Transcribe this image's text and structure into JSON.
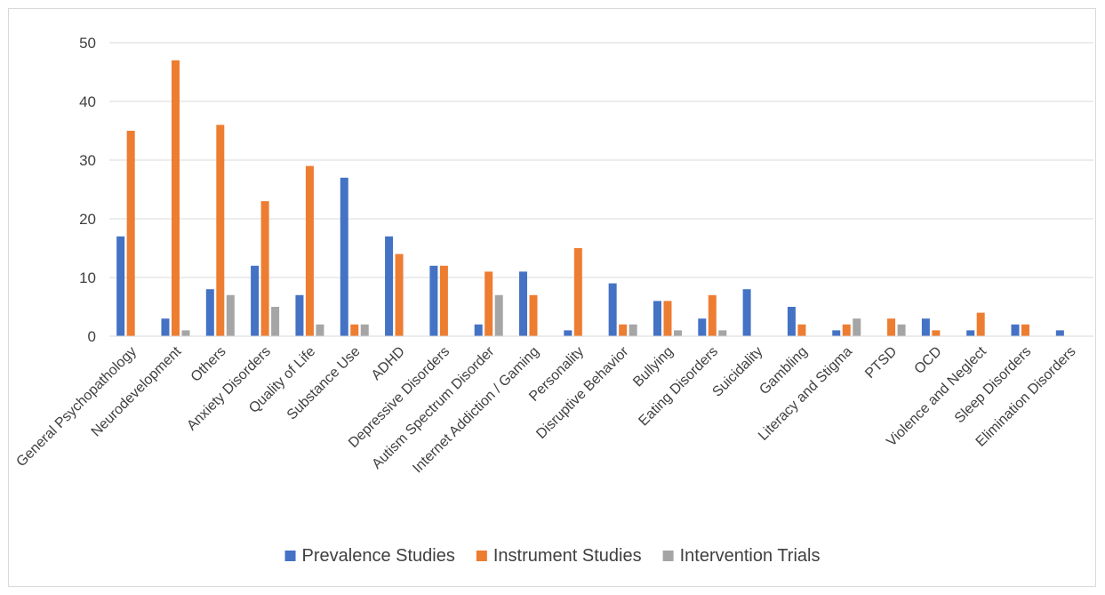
{
  "chart_data": {
    "type": "bar",
    "title": "",
    "xlabel": "",
    "ylabel": "",
    "ylim": [
      0,
      50
    ],
    "yticks": [
      0,
      10,
      20,
      30,
      40,
      50
    ],
    "grid": true,
    "legend_position": "bottom",
    "categories": [
      "General Psychopathology",
      "Neurodevelopment",
      "Others",
      "Anxiety Disorders",
      "Quality of Life",
      "Substance Use",
      "ADHD",
      "Depressive Disorders",
      "Autism Spectrum Disorder",
      "Internet Addiction / Gaming",
      "Personality",
      "Disruptive Behavior",
      "Bullying",
      "Eating Disorders",
      "Suicidality",
      "Gambling",
      "Literacy and Stigma",
      "PTSD",
      "OCD",
      "Violence and Neglect",
      "Sleep Disorders",
      "Elimination Disorders"
    ],
    "series": [
      {
        "name": "Prevalence Studies",
        "color": "#4472c4",
        "values": [
          17,
          3,
          8,
          12,
          7,
          27,
          17,
          12,
          2,
          11,
          1,
          9,
          6,
          3,
          8,
          5,
          1,
          0,
          3,
          1,
          2,
          1
        ]
      },
      {
        "name": "Instrument Studies",
        "color": "#ed7d31",
        "values": [
          35,
          47,
          36,
          23,
          29,
          2,
          14,
          12,
          11,
          7,
          15,
          2,
          6,
          7,
          0,
          2,
          2,
          3,
          1,
          4,
          2,
          0
        ]
      },
      {
        "name": "Intervention Trials",
        "color": "#a5a5a5",
        "values": [
          0,
          1,
          7,
          5,
          2,
          2,
          0,
          0,
          7,
          0,
          0,
          2,
          1,
          1,
          0,
          0,
          3,
          2,
          0,
          0,
          0,
          0
        ]
      }
    ]
  }
}
